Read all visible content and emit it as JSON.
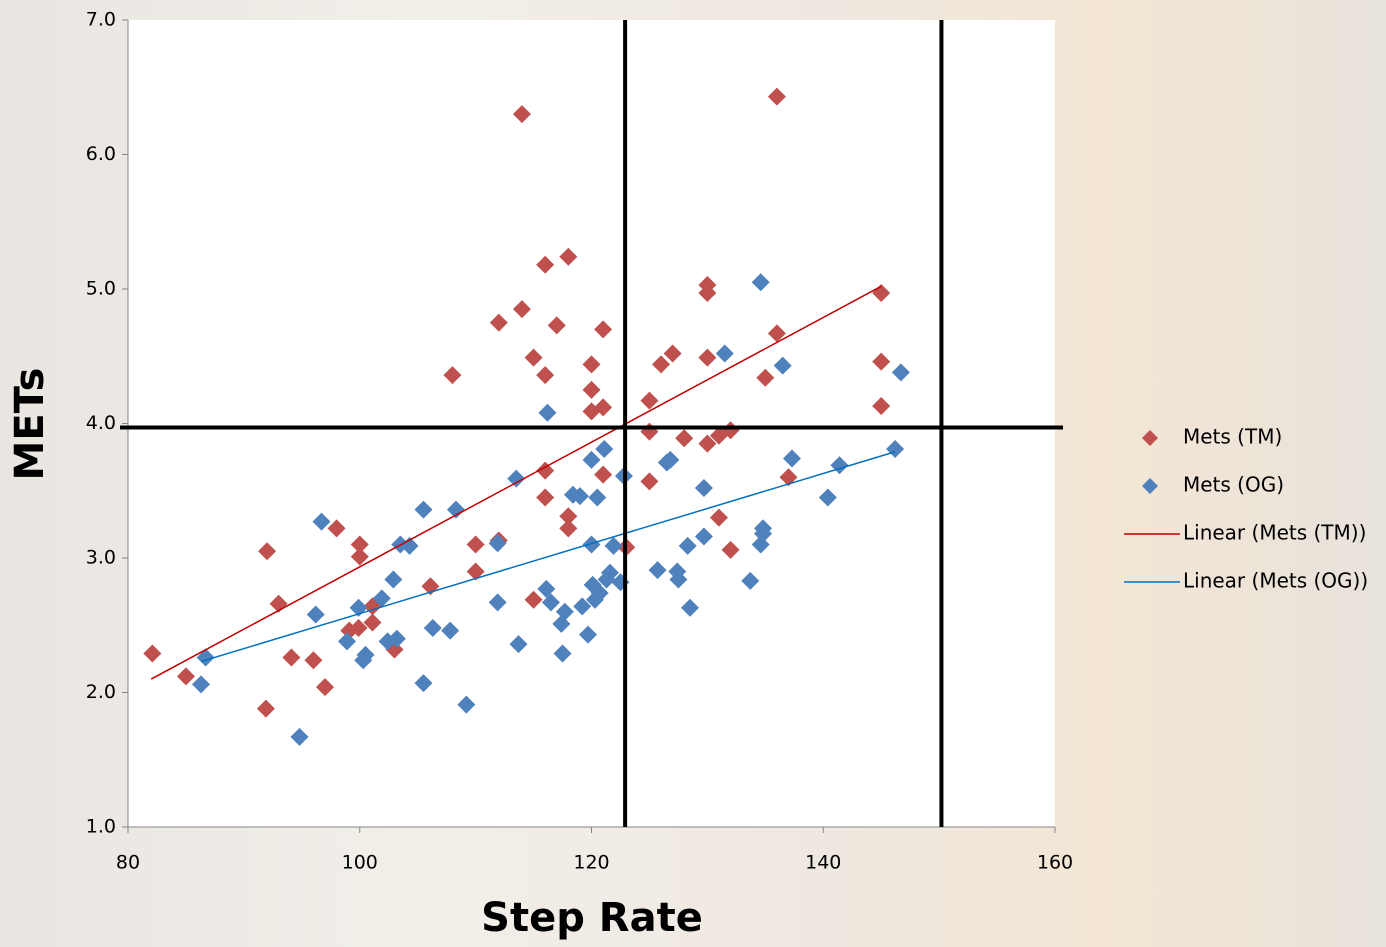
{
  "chart_data": {
    "type": "scatter",
    "x_label": "Step Rate",
    "y_label": "METs",
    "xlim": [
      80,
      160
    ],
    "ylim": [
      1,
      7
    ],
    "xticks": [
      80,
      100,
      120,
      140,
      160
    ],
    "yticks": [
      {
        "value": 1,
        "label": "1.0"
      },
      {
        "value": 2,
        "label": "2.0"
      },
      {
        "value": 3,
        "label": "3.0"
      },
      {
        "value": 4,
        "label": "4.0"
      },
      {
        "value": 5,
        "label": "5.0"
      },
      {
        "value": 6,
        "label": "6.0"
      },
      {
        "value": 7,
        "label": "7.0"
      }
    ],
    "reference_lines": {
      "x": [
        122.9,
        150.2
      ],
      "y": [
        3.97
      ]
    },
    "series": [
      {
        "name": "Mets (TM)",
        "color": "#c0504d",
        "x": [
          82.1,
          85.0,
          92.0,
          91.9,
          93.0,
          94.1,
          96.0,
          97.0,
          98.0,
          99.1,
          100.0,
          100.0,
          99.9,
          101.1,
          101.1,
          103.0,
          106.1,
          108.0,
          110.0,
          110.0,
          112.0,
          112.0,
          114.0,
          114.0,
          115.0,
          115.0,
          116.0,
          116.0,
          116.0,
          116.0,
          117.0,
          118.0,
          118.0,
          118.0,
          120.0,
          120.0,
          120.0,
          121.0,
          121.0,
          121.0,
          123.0,
          125.0,
          125.0,
          125.0,
          126.0,
          127.0,
          128.0,
          130.0,
          130.0,
          130.0,
          130.0,
          131.0,
          131.0,
          132.0,
          132.0,
          135.0,
          136.0,
          136.0,
          137.0,
          145.0,
          145.0,
          145.0
        ],
        "values": [
          2.29,
          2.12,
          3.05,
          1.88,
          2.66,
          2.26,
          2.24,
          2.04,
          3.22,
          2.46,
          3.1,
          3.01,
          2.48,
          2.64,
          2.52,
          2.32,
          2.79,
          4.36,
          3.1,
          2.9,
          3.13,
          4.75,
          6.3,
          4.85,
          4.49,
          2.69,
          5.18,
          4.36,
          3.65,
          3.45,
          4.73,
          5.24,
          3.31,
          3.22,
          4.44,
          4.25,
          4.09,
          4.7,
          4.12,
          3.62,
          3.08,
          4.17,
          3.94,
          3.57,
          4.44,
          4.52,
          3.89,
          5.03,
          4.97,
          4.49,
          3.85,
          3.3,
          3.91,
          3.95,
          3.06,
          4.34,
          4.67,
          6.43,
          3.6,
          4.97,
          4.46,
          4.13
        ],
        "trendline": {
          "name": "Linear (Mets (TM))",
          "color": "#c00000",
          "x": [
            82,
            145
          ],
          "values": [
            2.1,
            5.02
          ]
        }
      },
      {
        "name": "Mets (OG)",
        "color": "#4f81bd",
        "x": [
          86.3,
          86.7,
          94.8,
          96.2,
          96.7,
          98.9,
          99.9,
          100.3,
          100.5,
          101.9,
          102.4,
          102.9,
          103.2,
          103.5,
          104.3,
          105.5,
          105.5,
          106.3,
          107.8,
          108.3,
          109.2,
          111.9,
          111.9,
          113.5,
          113.7,
          116.1,
          116.2,
          116.5,
          117.4,
          117.5,
          117.7,
          118.4,
          119.0,
          119.2,
          119.7,
          120.0,
          120.0,
          120.1,
          120.3,
          120.5,
          120.7,
          121.1,
          121.3,
          121.6,
          121.9,
          122.5,
          122.8,
          125.7,
          126.5,
          126.8,
          127.4,
          127.5,
          128.3,
          128.5,
          129.7,
          129.7,
          131.5,
          133.7,
          134.6,
          134.8,
          134.8,
          134.6,
          136.5,
          137.3,
          140.4,
          141.4,
          146.2,
          146.7
        ],
        "values": [
          2.06,
          2.26,
          1.67,
          2.58,
          3.27,
          2.38,
          2.63,
          2.24,
          2.28,
          2.7,
          2.38,
          2.84,
          2.4,
          3.1,
          3.09,
          3.36,
          2.07,
          2.48,
          2.46,
          3.36,
          1.91,
          3.11,
          2.67,
          3.59,
          2.36,
          2.77,
          4.08,
          2.67,
          2.51,
          2.29,
          2.6,
          3.47,
          3.46,
          2.64,
          2.43,
          3.73,
          3.1,
          2.8,
          2.69,
          3.45,
          2.74,
          3.81,
          2.84,
          2.89,
          3.09,
          2.82,
          3.61,
          2.91,
          3.71,
          3.73,
          2.9,
          2.84,
          3.09,
          2.63,
          3.16,
          3.52,
          4.52,
          2.83,
          3.1,
          3.18,
          3.22,
          5.05,
          4.43,
          3.74,
          3.45,
          3.69,
          3.81,
          4.38
        ],
        "trendline": {
          "name": "Linear (Mets (OG))",
          "color": "#0070c0",
          "x": [
            86.3,
            146.2
          ],
          "values": [
            2.23,
            3.79
          ]
        }
      }
    ]
  }
}
